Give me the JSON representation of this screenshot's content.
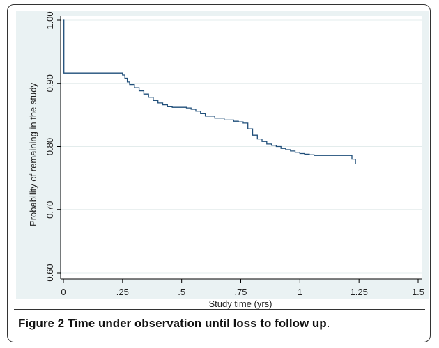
{
  "chart_data": {
    "type": "line",
    "title": "",
    "xlabel": "Study time (yrs)",
    "ylabel": "Probability of remaining in the study",
    "xlim": [
      0,
      1.5
    ],
    "ylim": [
      0.6,
      1.0
    ],
    "x_ticks": [
      0,
      0.25,
      0.5,
      0.75,
      1,
      1.25,
      1.5
    ],
    "x_tick_labels": [
      "0",
      ".25",
      ".5",
      ".75",
      "1",
      "1.25",
      "1.5"
    ],
    "y_ticks": [
      0.6,
      0.7,
      0.8,
      0.9,
      1.0
    ],
    "y_tick_labels": [
      "0.60",
      "0.70",
      "0.80",
      "0.90",
      "1.00"
    ],
    "grid": true,
    "step": true,
    "series": [
      {
        "color": "#1f4e79",
        "x": [
          0,
          0.002,
          0.24,
          0.25,
          0.26,
          0.27,
          0.28,
          0.3,
          0.32,
          0.34,
          0.36,
          0.38,
          0.4,
          0.42,
          0.44,
          0.46,
          0.5,
          0.52,
          0.54,
          0.56,
          0.58,
          0.6,
          0.64,
          0.68,
          0.72,
          0.74,
          0.76,
          0.78,
          0.8,
          0.82,
          0.84,
          0.86,
          0.88,
          0.9,
          0.92,
          0.94,
          0.96,
          0.98,
          1.0,
          1.02,
          1.04,
          1.06,
          1.1,
          1.18,
          1.21,
          1.22,
          1.23,
          1.235
        ],
        "y": [
          1.0,
          0.916,
          0.916,
          0.913,
          0.908,
          0.902,
          0.898,
          0.893,
          0.888,
          0.883,
          0.878,
          0.873,
          0.869,
          0.866,
          0.863,
          0.862,
          0.862,
          0.861,
          0.859,
          0.856,
          0.852,
          0.848,
          0.845,
          0.842,
          0.84,
          0.839,
          0.837,
          0.828,
          0.818,
          0.812,
          0.808,
          0.804,
          0.802,
          0.8,
          0.797,
          0.795,
          0.793,
          0.791,
          0.789,
          0.788,
          0.787,
          0.786,
          0.786,
          0.786,
          0.786,
          0.78,
          0.78,
          0.773
        ]
      }
    ]
  },
  "caption": {
    "label": "Figure 2",
    "text": "Time under observation until loss to follow up",
    "end": "."
  }
}
